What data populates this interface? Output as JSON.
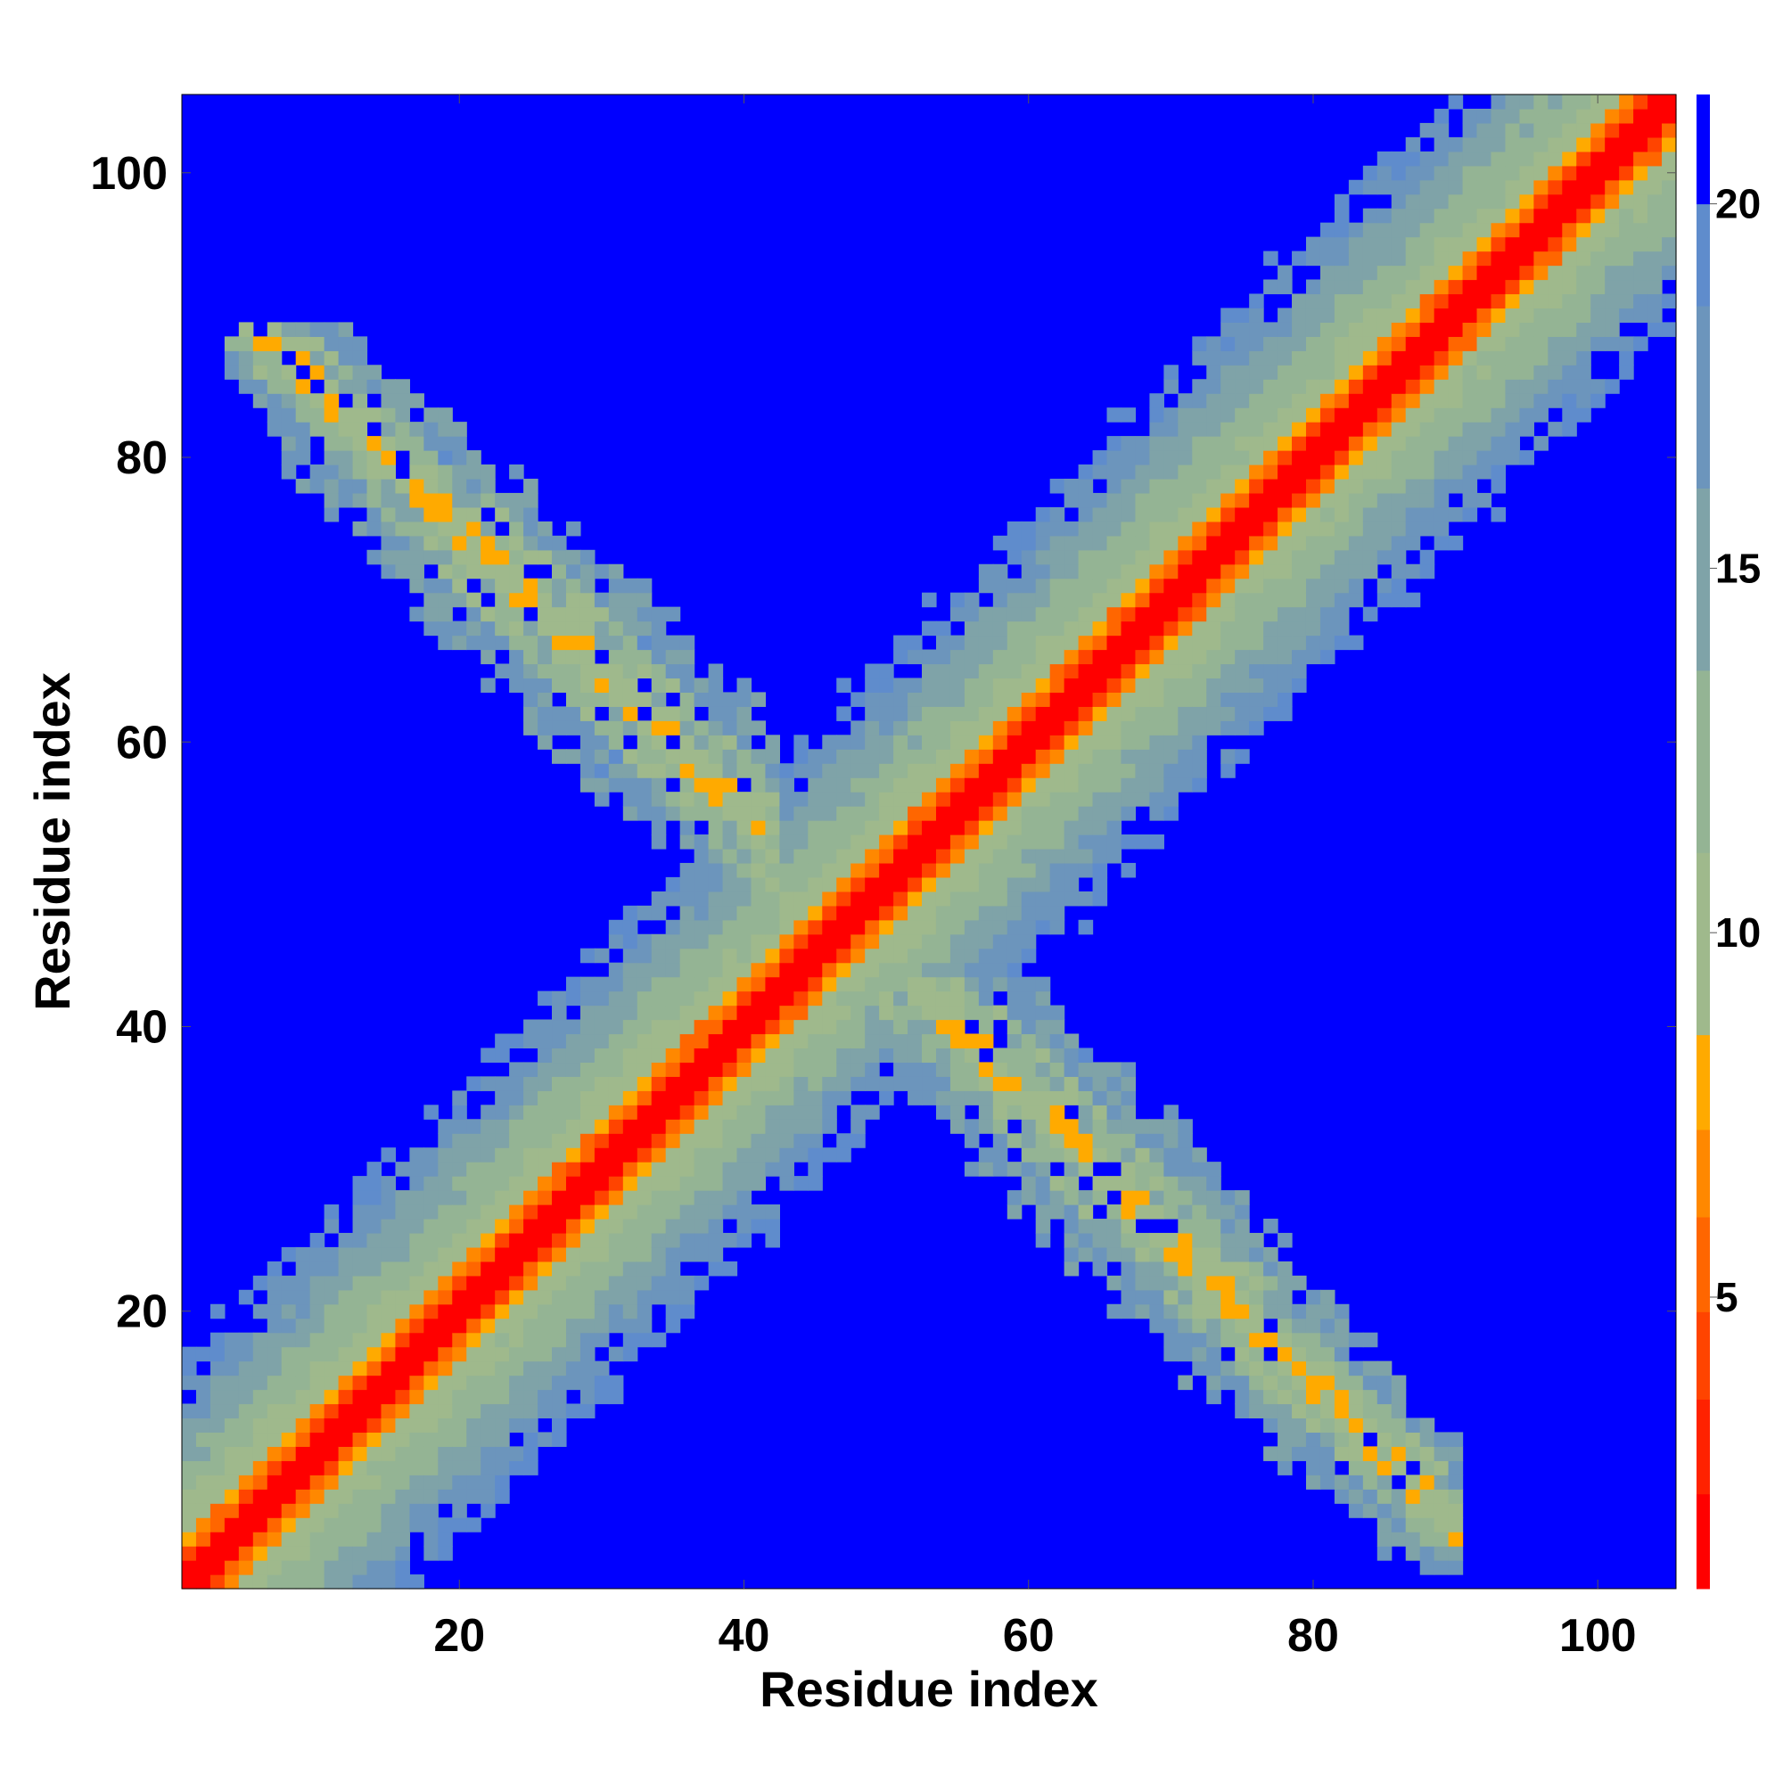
{
  "chart_data": {
    "type": "heatmap",
    "title": "",
    "xlabel": "Residue index",
    "ylabel": "Residue index",
    "n_residues": 105,
    "xlim": [
      1,
      105
    ],
    "ylim": [
      1,
      105
    ],
    "x_ticks": [
      20,
      40,
      60,
      80,
      100
    ],
    "y_ticks": [
      20,
      40,
      60,
      80,
      100
    ],
    "colorbar": {
      "range": [
        1,
        21.5
      ],
      "ticks": [
        5,
        10,
        15,
        20
      ],
      "levels": [
        {
          "min": 1.0,
          "max": 2.3,
          "color": "#ff0000"
        },
        {
          "min": 2.3,
          "max": 3.6,
          "color": "#ff2200"
        },
        {
          "min": 3.6,
          "max": 4.8,
          "color": "#ff4400"
        },
        {
          "min": 4.8,
          "max": 6.1,
          "color": "#ff6600"
        },
        {
          "min": 6.1,
          "max": 7.3,
          "color": "#ff8800"
        },
        {
          "min": 7.3,
          "max": 8.6,
          "color": "#ffaa00"
        },
        {
          "min": 8.6,
          "max": 11.1,
          "color": "#9fb98c"
        },
        {
          "min": 11.1,
          "max": 13.6,
          "color": "#94b494"
        },
        {
          "min": 13.6,
          "max": 16.1,
          "color": "#7fa3a8"
        },
        {
          "min": 16.1,
          "max": 18.6,
          "color": "#6c95bc"
        },
        {
          "min": 18.6,
          "max": 20.0,
          "color": "#5f8ccc"
        },
        {
          "min": 20.0,
          "max": 21.5,
          "color": "#0000ff"
        }
      ]
    },
    "background_color": "#0000ff",
    "features": [
      {
        "kind": "diagonal",
        "from": 1,
        "to": 105
      },
      {
        "kind": "antiparallel-band",
        "x_range": [
          4,
          42
        ],
        "y_range": [
          38,
          89
        ],
        "sum": 95
      },
      {
        "kind": "antiparallel-band",
        "x_range": [
          36,
          90
        ],
        "y_range": [
          2,
          43
        ],
        "sum": 95
      }
    ]
  }
}
